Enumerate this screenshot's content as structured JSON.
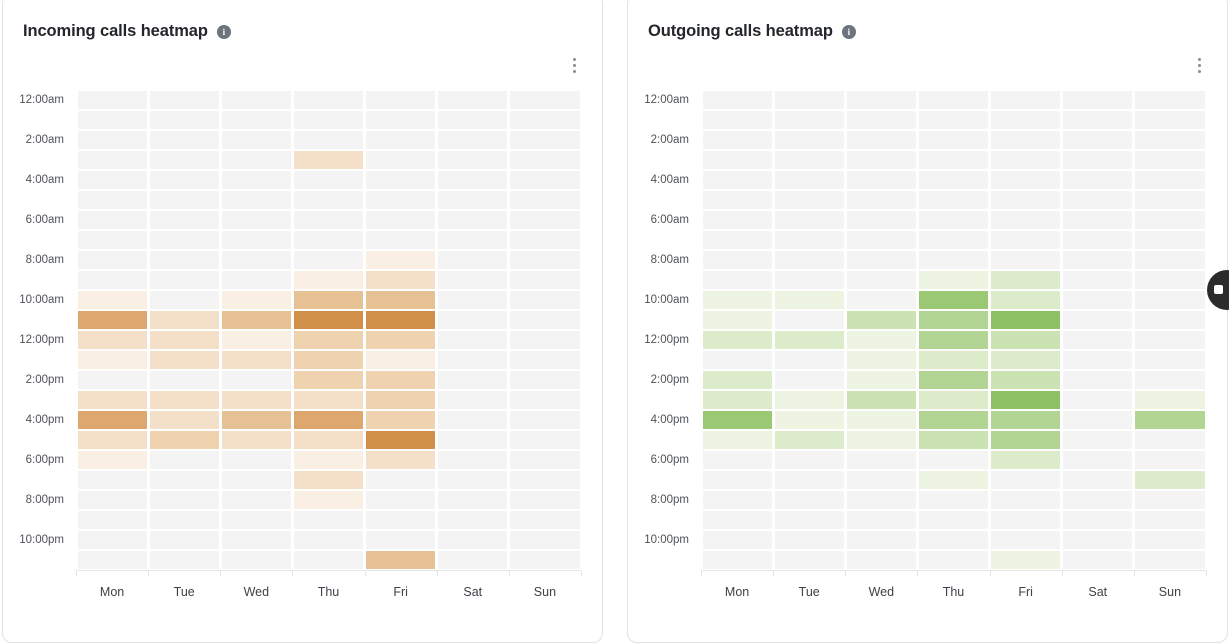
{
  "page": {
    "background": "#ffffff"
  },
  "cards": [
    {
      "title": "Incoming calls heatmap",
      "info_icon": "info-icon",
      "menu_icon": "kebab-menu-icon"
    },
    {
      "title": "Outgoing calls heatmap",
      "info_icon": "info-icon",
      "menu_icon": "kebab-menu-icon"
    }
  ],
  "floating_button": {
    "icon": "help-icon",
    "color": "#2b2b2b"
  },
  "chart_data": [
    {
      "type": "heatmap",
      "title": "Incoming calls heatmap",
      "x_categories": [
        "Mon",
        "Tue",
        "Wed",
        "Thu",
        "Fri",
        "Sat",
        "Sun"
      ],
      "y_tick_labels": [
        "12:00am",
        "2:00am",
        "4:00am",
        "6:00am",
        "8:00am",
        "10:00am",
        "12:00pm",
        "2:00pm",
        "4:00pm",
        "6:00pm",
        "8:00pm",
        "10:00pm"
      ],
      "n_rows": 24,
      "rows_per_tick": 2,
      "value_scale": "relative color intensity 0 (none) to 6 (peak); numeric values not shown on screen",
      "legend": "none",
      "grid": "white gaps between cells",
      "palette": [
        "#f4f4f4",
        "#f9efe2",
        "#f4e0c8",
        "#eed3ae",
        "#e6c193",
        "#dda76e",
        "#d1904a"
      ],
      "values": [
        [
          0,
          0,
          0,
          0,
          0,
          0,
          0
        ],
        [
          0,
          0,
          0,
          0,
          0,
          0,
          0
        ],
        [
          0,
          0,
          0,
          0,
          0,
          0,
          0
        ],
        [
          0,
          0,
          0,
          2,
          0,
          0,
          0
        ],
        [
          0,
          0,
          0,
          0,
          0,
          0,
          0
        ],
        [
          0,
          0,
          0,
          0,
          0,
          0,
          0
        ],
        [
          0,
          0,
          0,
          0,
          0,
          0,
          0
        ],
        [
          0,
          0,
          0,
          0,
          0,
          0,
          0
        ],
        [
          0,
          0,
          0,
          0,
          1,
          0,
          0
        ],
        [
          0,
          0,
          0,
          1,
          2,
          0,
          0
        ],
        [
          1,
          0,
          1,
          4,
          4,
          0,
          0
        ],
        [
          5,
          2,
          4,
          6,
          6,
          0,
          0
        ],
        [
          2,
          2,
          1,
          3,
          3,
          0,
          0
        ],
        [
          1,
          2,
          2,
          3,
          1,
          0,
          0
        ],
        [
          0,
          0,
          0,
          3,
          3,
          0,
          0
        ],
        [
          2,
          2,
          2,
          2,
          3,
          0,
          0
        ],
        [
          5,
          2,
          4,
          5,
          3,
          0,
          0
        ],
        [
          2,
          3,
          2,
          2,
          6,
          0,
          0
        ],
        [
          1,
          0,
          0,
          1,
          2,
          0,
          0
        ],
        [
          0,
          0,
          0,
          2,
          0,
          0,
          0
        ],
        [
          0,
          0,
          0,
          1,
          0,
          0,
          0
        ],
        [
          0,
          0,
          0,
          0,
          0,
          0,
          0
        ],
        [
          0,
          0,
          0,
          0,
          0,
          0,
          0
        ],
        [
          0,
          0,
          0,
          0,
          4,
          0,
          0
        ]
      ]
    },
    {
      "type": "heatmap",
      "title": "Outgoing calls heatmap",
      "x_categories": [
        "Mon",
        "Tue",
        "Wed",
        "Thu",
        "Fri",
        "Sat",
        "Sun"
      ],
      "y_tick_labels": [
        "12:00am",
        "2:00am",
        "4:00am",
        "6:00am",
        "8:00am",
        "10:00am",
        "12:00pm",
        "2:00pm",
        "4:00pm",
        "6:00pm",
        "8:00pm",
        "10:00pm"
      ],
      "n_rows": 24,
      "rows_per_tick": 2,
      "value_scale": "relative color intensity 0 (none) to 6 (peak); numeric values not shown on screen",
      "legend": "none",
      "grid": "white gaps between cells",
      "palette": [
        "#f4f4f4",
        "#edf4e2",
        "#dcecca",
        "#cbe3b2",
        "#b3d594",
        "#9ac873",
        "#8cc063"
      ],
      "values": [
        [
          0,
          0,
          0,
          0,
          0,
          0,
          0
        ],
        [
          0,
          0,
          0,
          0,
          0,
          0,
          0
        ],
        [
          0,
          0,
          0,
          0,
          0,
          0,
          0
        ],
        [
          0,
          0,
          0,
          0,
          0,
          0,
          0
        ],
        [
          0,
          0,
          0,
          0,
          0,
          0,
          0
        ],
        [
          0,
          0,
          0,
          0,
          0,
          0,
          0
        ],
        [
          0,
          0,
          0,
          0,
          0,
          0,
          0
        ],
        [
          0,
          0,
          0,
          0,
          0,
          0,
          0
        ],
        [
          0,
          0,
          0,
          0,
          0,
          0,
          0
        ],
        [
          0,
          0,
          0,
          1,
          2,
          0,
          0
        ],
        [
          1,
          1,
          0,
          5,
          2,
          0,
          0
        ],
        [
          1,
          0,
          3,
          4,
          6,
          0,
          0
        ],
        [
          2,
          2,
          1,
          4,
          3,
          0,
          0
        ],
        [
          0,
          0,
          1,
          2,
          2,
          0,
          0
        ],
        [
          2,
          0,
          1,
          4,
          3,
          0,
          0
        ],
        [
          2,
          1,
          3,
          2,
          6,
          0,
          1
        ],
        [
          5,
          1,
          1,
          4,
          4,
          0,
          4
        ],
        [
          1,
          2,
          1,
          3,
          4,
          0,
          0
        ],
        [
          0,
          0,
          0,
          0,
          2,
          0,
          0
        ],
        [
          0,
          0,
          0,
          1,
          0,
          0,
          2
        ],
        [
          0,
          0,
          0,
          0,
          0,
          0,
          0
        ],
        [
          0,
          0,
          0,
          0,
          0,
          0,
          0
        ],
        [
          0,
          0,
          0,
          0,
          0,
          0,
          0
        ],
        [
          0,
          0,
          0,
          0,
          1,
          0,
          0
        ]
      ]
    }
  ]
}
